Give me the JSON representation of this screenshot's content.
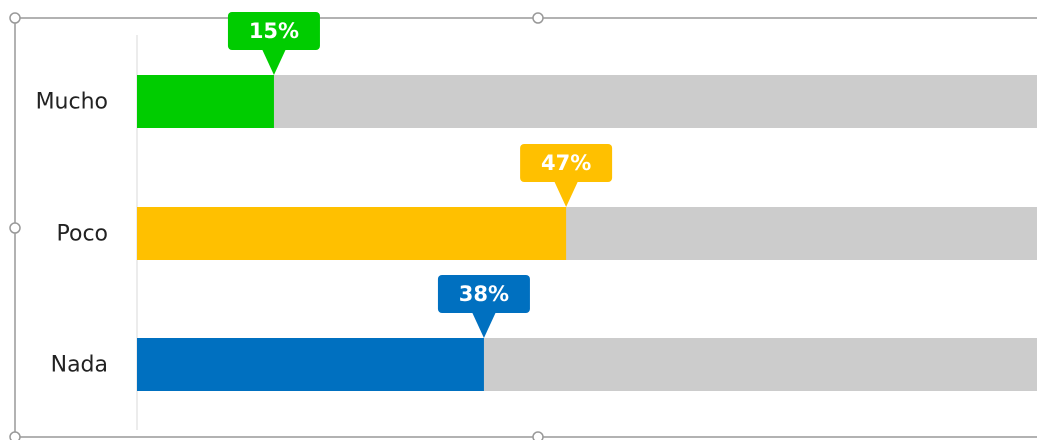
{
  "chart_data": {
    "type": "bar",
    "orientation": "horizontal",
    "categories": [
      "Mucho",
      "Poco",
      "Nada"
    ],
    "values": [
      15,
      47,
      38
    ],
    "value_labels": [
      "15%",
      "47%",
      "38%"
    ],
    "colors": [
      "#00cc00",
      "#ffc000",
      "#0070c0"
    ],
    "track_color": "#cccccc",
    "xlim": [
      0,
      100
    ]
  }
}
